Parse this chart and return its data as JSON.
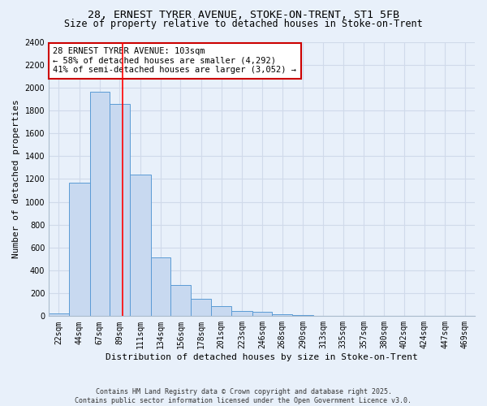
{
  "title_line1": "28, ERNEST TYRER AVENUE, STOKE-ON-TRENT, ST1 5FB",
  "title_line2": "Size of property relative to detached houses in Stoke-on-Trent",
  "xlabel": "Distribution of detached houses by size in Stoke-on-Trent",
  "ylabel": "Number of detached properties",
  "bin_labels": [
    "22sqm",
    "44sqm",
    "67sqm",
    "89sqm",
    "111sqm",
    "134sqm",
    "156sqm",
    "178sqm",
    "201sqm",
    "223sqm",
    "246sqm",
    "268sqm",
    "290sqm",
    "313sqm",
    "335sqm",
    "357sqm",
    "380sqm",
    "402sqm",
    "424sqm",
    "447sqm",
    "469sqm"
  ],
  "bar_heights": [
    25,
    1170,
    1960,
    1860,
    1240,
    515,
    275,
    150,
    90,
    45,
    35,
    15,
    10,
    5,
    3,
    2,
    1,
    1,
    1,
    1,
    1
  ],
  "bar_color": "#c8d9f0",
  "bar_edge_color": "#5b9bd5",
  "background_color": "#e8f0fa",
  "grid_color": "#d0daea",
  "red_line_x": 103,
  "bin_edges_sqm": [
    22,
    44,
    67,
    89,
    111,
    134,
    156,
    178,
    201,
    223,
    246,
    268,
    290,
    313,
    335,
    357,
    380,
    402,
    424,
    447,
    469,
    491
  ],
  "annotation_text": "28 ERNEST TYRER AVENUE: 103sqm\n← 58% of detached houses are smaller (4,292)\n41% of semi-detached houses are larger (3,052) →",
  "annotation_box_color": "#ffffff",
  "annotation_box_edge_color": "#cc0000",
  "ylim": [
    0,
    2400
  ],
  "yticks": [
    0,
    200,
    400,
    600,
    800,
    1000,
    1200,
    1400,
    1600,
    1800,
    2000,
    2200,
    2400
  ],
  "footer_line1": "Contains HM Land Registry data © Crown copyright and database right 2025.",
  "footer_line2": "Contains public sector information licensed under the Open Government Licence v3.0.",
  "title_fontsize": 9.5,
  "subtitle_fontsize": 8.5,
  "axis_label_fontsize": 8,
  "tick_fontsize": 7,
  "annotation_fontsize": 7.5
}
